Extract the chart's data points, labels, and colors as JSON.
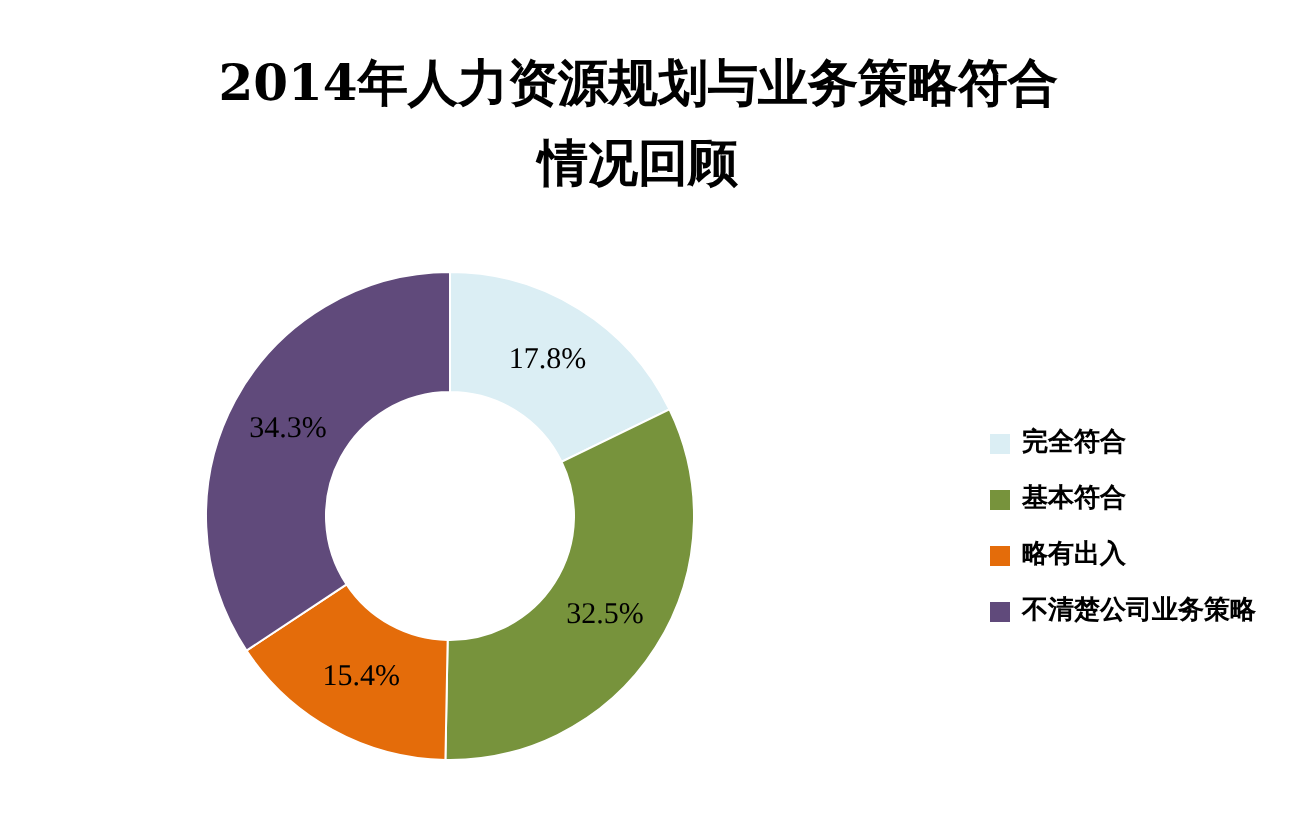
{
  "chart_data": {
    "type": "donut",
    "title": "2014年人力资源规划与业务策略符合情况回顾",
    "categories": [
      "完全符合",
      "基本符合",
      "略有出入",
      "不清楚公司业务策略"
    ],
    "values": [
      17.8,
      32.5,
      15.4,
      34.3
    ],
    "colors": [
      "#dbeef4",
      "#77933c",
      "#e46c0a",
      "#604a7b"
    ],
    "value_labels": [
      "17.8%",
      "32.5%",
      "15.4%",
      "34.3%"
    ],
    "legend": "right"
  }
}
